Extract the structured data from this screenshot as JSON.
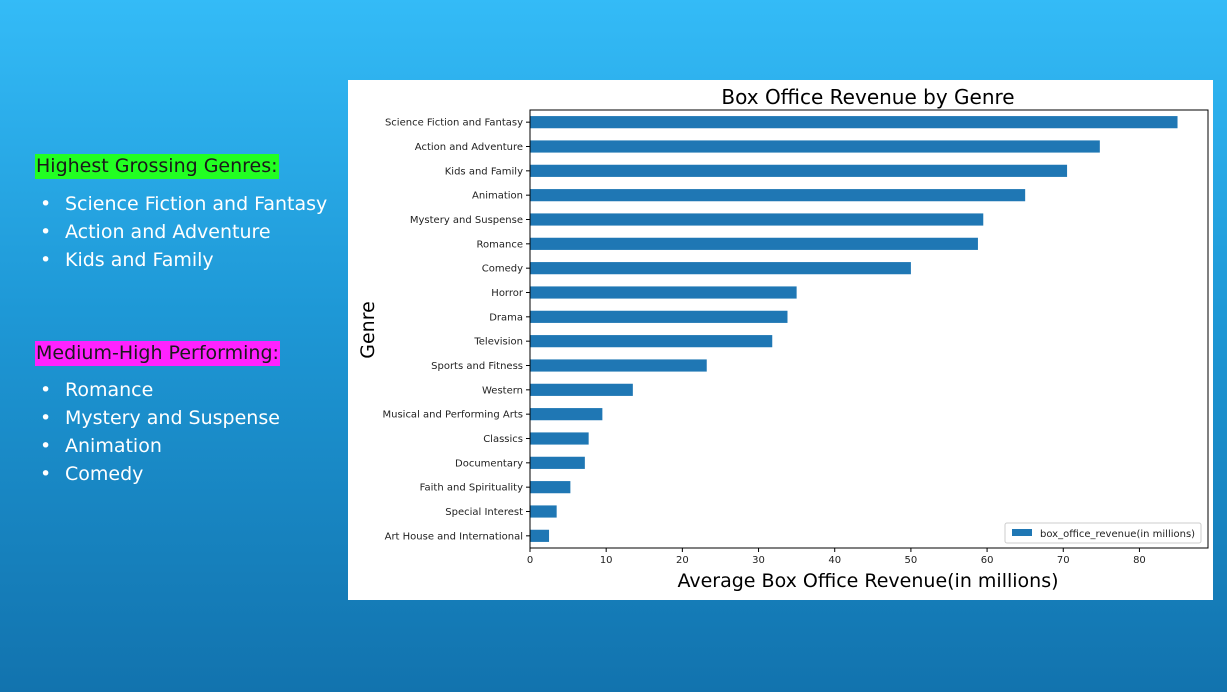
{
  "left_panel": {
    "high": {
      "heading": "Highest Grossing Genres:",
      "highlight_color": "#22FF22",
      "items": [
        "Science Fiction and Fantasy",
        "Action and Adventure",
        "Kids and Family"
      ]
    },
    "medium": {
      "heading": "Medium-High Performing:",
      "highlight_color": "#FF22FF",
      "items": [
        "Romance",
        "Mystery and Suspense",
        "Animation",
        "Comedy"
      ]
    },
    "bullet": "•"
  },
  "chart_data": {
    "type": "bar",
    "orientation": "horizontal",
    "title": "Box Office Revenue by Genre",
    "xlabel": "Average Box Office Revenue(in millions)",
    "ylabel": "Genre",
    "categories": [
      "Science Fiction and Fantasy",
      "Action and Adventure",
      "Kids and Family",
      "Animation",
      "Mystery and Suspense",
      "Romance",
      "Comedy",
      "Horror",
      "Drama",
      "Television",
      "Sports and Fitness",
      "Western",
      "Musical and Performing Arts",
      "Classics",
      "Documentary",
      "Faith and Spirituality",
      "Special Interest",
      "Art House and International"
    ],
    "series": [
      {
        "name": "box_office_revenue(in millions)",
        "color": "#1F77B4",
        "values": [
          85.0,
          74.8,
          70.5,
          65.0,
          59.5,
          58.8,
          50.0,
          35.0,
          33.8,
          31.8,
          23.2,
          13.5,
          9.5,
          7.7,
          7.2,
          5.3,
          3.5,
          2.5
        ]
      }
    ],
    "xlim": [
      0,
      89
    ],
    "xticks": [
      0,
      10,
      20,
      30,
      40,
      50,
      60,
      70,
      80
    ],
    "legend_position": "lower-right",
    "grid": false
  }
}
